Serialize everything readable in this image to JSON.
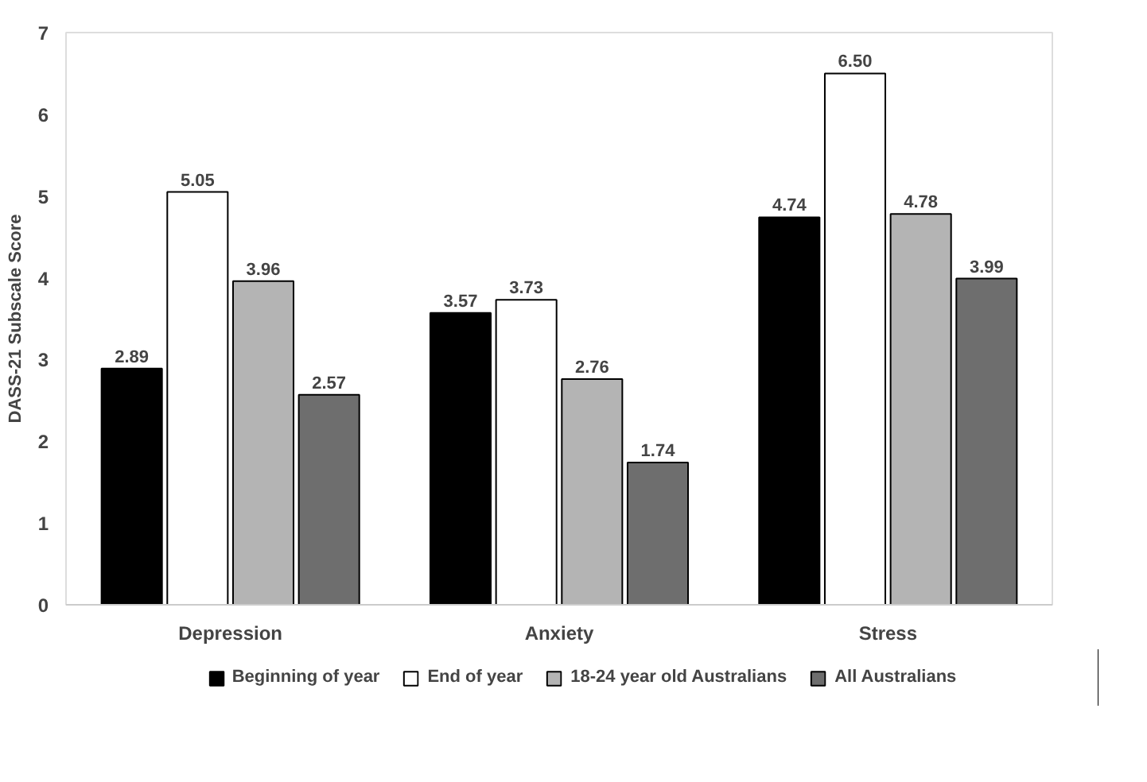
{
  "chart_data": {
    "type": "bar",
    "ylabel": "DASS-21 Subscale Score",
    "categories": [
      "Depression",
      "Anxiety",
      "Stress"
    ],
    "series": [
      {
        "name": "Beginning of year",
        "color": "#000000",
        "values": [
          2.89,
          3.57,
          4.74
        ],
        "value_labels": [
          "2.89",
          "3.57",
          "4.74"
        ]
      },
      {
        "name": "End of year",
        "color": "#ffffff",
        "values": [
          5.05,
          3.73,
          6.5
        ],
        "value_labels": [
          "5.05",
          "3.73",
          "6.50"
        ]
      },
      {
        "name": "18-24 year old Australians",
        "color": "#b4b4b4",
        "values": [
          3.96,
          2.76,
          4.78
        ],
        "value_labels": [
          "3.96",
          "2.76",
          "4.78"
        ]
      },
      {
        "name": "All Australians",
        "color": "#6e6e6e",
        "values": [
          2.57,
          1.74,
          3.99
        ],
        "value_labels": [
          "2.57",
          "1.74",
          "3.99"
        ]
      }
    ],
    "ylim": [
      0,
      7
    ],
    "yticks": [
      0,
      1,
      2,
      3,
      4,
      5,
      6,
      7
    ],
    "grid": false,
    "legend": "bottom"
  }
}
